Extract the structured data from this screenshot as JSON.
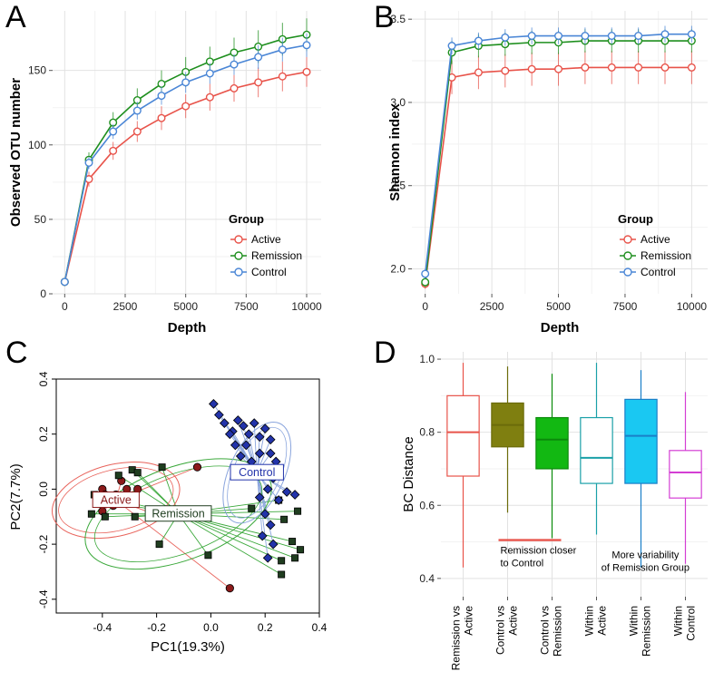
{
  "chart_data": [
    {
      "panel": "A",
      "type": "line",
      "xlabel": "Depth",
      "ylabel": "Observed OTU number",
      "xlim": [
        -500,
        10600
      ],
      "ylim": [
        0,
        190
      ],
      "x_ticks": [
        0,
        2500,
        5000,
        7500,
        10000
      ],
      "y_ticks": [
        0,
        50,
        100,
        150
      ],
      "grid": true,
      "legend": {
        "title": "Group",
        "position": "bottom-right"
      },
      "x": [
        0,
        1000,
        2000,
        3000,
        4000,
        5000,
        6000,
        7000,
        8000,
        9000,
        10000
      ],
      "series": [
        {
          "name": "Active",
          "color": "#e8534a",
          "values": [
            8,
            77,
            96,
            109,
            118,
            126,
            132,
            138,
            142,
            146,
            149
          ],
          "errors": [
            0,
            5,
            6,
            7,
            8,
            8,
            9,
            9,
            10,
            10,
            10
          ]
        },
        {
          "name": "Remission",
          "color": "#1e8f1e",
          "values": [
            8,
            90,
            115,
            130,
            141,
            149,
            156,
            162,
            166,
            171,
            174
          ],
          "errors": [
            0,
            5,
            7,
            8,
            9,
            10,
            10,
            10,
            11,
            11,
            11
          ]
        },
        {
          "name": "Control",
          "color": "#4a86d6",
          "values": [
            8,
            88,
            109,
            123,
            133,
            142,
            148,
            154,
            159,
            164,
            167
          ],
          "errors": [
            0,
            4,
            5,
            6,
            6,
            7,
            7,
            7,
            8,
            8,
            8
          ]
        }
      ]
    },
    {
      "panel": "B",
      "type": "line",
      "xlabel": "Depth",
      "ylabel": "Shannon index",
      "xlim": [
        -500,
        10600
      ],
      "ylim": [
        1.85,
        3.55
      ],
      "x_ticks": [
        0,
        2500,
        5000,
        7500,
        10000
      ],
      "y_ticks": [
        2.0,
        2.5,
        3.0,
        3.5
      ],
      "grid": true,
      "legend": {
        "title": "Group",
        "position": "bottom-right"
      },
      "x": [
        0,
        1000,
        2000,
        3000,
        4000,
        5000,
        6000,
        7000,
        8000,
        9000,
        10000
      ],
      "series": [
        {
          "name": "Active",
          "color": "#e8534a",
          "values": [
            1.91,
            3.15,
            3.18,
            3.19,
            3.2,
            3.2,
            3.21,
            3.21,
            3.21,
            3.21,
            3.21
          ],
          "errors": [
            0.03,
            0.1,
            0.1,
            0.1,
            0.1,
            0.1,
            0.1,
            0.1,
            0.1,
            0.1,
            0.1
          ]
        },
        {
          "name": "Remission",
          "color": "#1e8f1e",
          "values": [
            1.92,
            3.3,
            3.34,
            3.35,
            3.36,
            3.36,
            3.37,
            3.37,
            3.37,
            3.37,
            3.37
          ],
          "errors": [
            0.03,
            0.07,
            0.07,
            0.07,
            0.07,
            0.07,
            0.07,
            0.07,
            0.07,
            0.07,
            0.07
          ]
        },
        {
          "name": "Control",
          "color": "#4a86d6",
          "values": [
            1.97,
            3.34,
            3.37,
            3.39,
            3.4,
            3.4,
            3.4,
            3.4,
            3.4,
            3.41,
            3.41
          ],
          "errors": [
            0.03,
            0.05,
            0.05,
            0.05,
            0.05,
            0.05,
            0.05,
            0.05,
            0.05,
            0.05,
            0.05
          ]
        }
      ]
    },
    {
      "panel": "C",
      "type": "scatter",
      "xlabel": "PC1(19.3%)",
      "ylabel": "PC2(7.7%)",
      "xlim": [
        -0.57,
        0.4
      ],
      "ylim": [
        -0.45,
        0.4
      ],
      "x_ticks": [
        -0.4,
        -0.2,
        0.0,
        0.2,
        0.4
      ],
      "y_ticks": [
        -0.4,
        -0.2,
        0.0,
        0.2,
        0.4
      ],
      "grid": false,
      "groups": [
        {
          "name": "Active",
          "label": "Active",
          "color": "#8b1a1a",
          "line_color": "#e8625a",
          "centroid": [
            -0.35,
            -0.04
          ],
          "ellipse": [
            0.24,
            0.13,
            -14
          ],
          "points": [
            [
              -0.42,
              -0.05
            ],
            [
              -0.4,
              0.0
            ],
            [
              -0.38,
              -0.03
            ],
            [
              -0.35,
              -0.02
            ],
            [
              -0.36,
              -0.06
            ],
            [
              -0.33,
              0.03
            ],
            [
              -0.31,
              0.0
            ],
            [
              -0.29,
              -0.05
            ],
            [
              -0.27,
              0.0
            ],
            [
              -0.4,
              -0.08
            ],
            [
              -0.21,
              -0.09
            ],
            [
              -0.05,
              0.08
            ],
            [
              0.07,
              -0.36
            ],
            [
              -0.39,
              -0.02
            ]
          ]
        },
        {
          "name": "Remission",
          "label": "Remission",
          "color": "#1f3d1f",
          "line_color": "#3aa83a",
          "centroid": [
            -0.12,
            -0.09
          ],
          "ellipse": [
            0.36,
            0.17,
            -20
          ],
          "points": [
            [
              -0.43,
              -0.02
            ],
            [
              -0.41,
              -0.04
            ],
            [
              -0.44,
              -0.09
            ],
            [
              -0.39,
              -0.1
            ],
            [
              -0.34,
              0.05
            ],
            [
              -0.29,
              0.07
            ],
            [
              -0.27,
              0.06
            ],
            [
              -0.18,
              0.08
            ],
            [
              -0.28,
              -0.1
            ],
            [
              -0.19,
              -0.2
            ],
            [
              -0.01,
              -0.24
            ],
            [
              0.15,
              -0.07
            ],
            [
              0.25,
              -0.04
            ],
            [
              0.27,
              -0.11
            ],
            [
              0.3,
              -0.19
            ],
            [
              0.33,
              -0.22
            ],
            [
              0.26,
              -0.26
            ],
            [
              0.26,
              -0.31
            ],
            [
              0.31,
              -0.25
            ],
            [
              0.32,
              -0.08
            ]
          ]
        },
        {
          "name": "Control",
          "label": "Control",
          "color": "#2233aa",
          "line_color": "#8aa5dd",
          "centroid": [
            0.17,
            0.06
          ],
          "ellipse": [
            0.2,
            0.1,
            -65
          ],
          "points": [
            [
              0.01,
              0.31
            ],
            [
              0.03,
              0.27
            ],
            [
              0.05,
              0.24
            ],
            [
              0.08,
              0.21
            ],
            [
              0.1,
              0.25
            ],
            [
              0.12,
              0.23
            ],
            [
              0.14,
              0.2
            ],
            [
              0.16,
              0.24
            ],
            [
              0.18,
              0.19
            ],
            [
              0.2,
              0.22
            ],
            [
              0.22,
              0.18
            ],
            [
              0.13,
              0.16
            ],
            [
              0.11,
              0.12
            ],
            [
              0.15,
              0.1
            ],
            [
              0.18,
              0.13
            ],
            [
              0.22,
              0.13
            ],
            [
              0.24,
              0.1
            ],
            [
              0.2,
              0.07
            ],
            [
              0.23,
              0.04
            ],
            [
              0.21,
              0.0
            ],
            [
              0.25,
              -0.04
            ],
            [
              0.28,
              -0.01
            ],
            [
              0.31,
              -0.02
            ],
            [
              0.18,
              -0.03
            ],
            [
              0.2,
              -0.09
            ],
            [
              0.22,
              -0.13
            ],
            [
              0.19,
              -0.17
            ],
            [
              0.23,
              -0.2
            ],
            [
              0.21,
              -0.25
            ],
            [
              0.09,
              0.16
            ],
            [
              0.07,
              0.2
            ],
            [
              0.25,
              0.06
            ]
          ]
        }
      ]
    },
    {
      "panel": "D",
      "type": "box",
      "ylabel": "BC Distance",
      "ylim": [
        0.35,
        1.02
      ],
      "y_ticks": [
        0.4,
        0.6,
        0.8,
        1.0
      ],
      "grid": true,
      "categories": [
        "Remission vs Active",
        "Control vs Active",
        "Control vs Remission",
        "Within Active",
        "Within Remission",
        "Within Control"
      ],
      "boxes": [
        {
          "label_lines": [
            "Remission vs",
            "Active"
          ],
          "color": "#e8534a",
          "fill": "#ffffff",
          "min": 0.43,
          "q1": 0.68,
          "median": 0.8,
          "q3": 0.9,
          "max": 0.99
        },
        {
          "label_lines": [
            "Control vs",
            "Active"
          ],
          "color": "#6b6b0a",
          "fill": "#7f7f10",
          "min": 0.58,
          "q1": 0.76,
          "median": 0.82,
          "q3": 0.88,
          "max": 0.98
        },
        {
          "label_lines": [
            "Control vs",
            "Remission"
          ],
          "color": "#0a8a0a",
          "fill": "#12b812",
          "min": 0.51,
          "q1": 0.7,
          "median": 0.78,
          "q3": 0.84,
          "max": 0.96
        },
        {
          "label_lines": [
            "Within",
            "Active"
          ],
          "color": "#1aa0a8",
          "fill": "#ffffff",
          "min": 0.52,
          "q1": 0.66,
          "median": 0.73,
          "q3": 0.84,
          "max": 0.99
        },
        {
          "label_lines": [
            "Within",
            "Remission"
          ],
          "color": "#1a7fc8",
          "fill": "#1ac8f2",
          "min": 0.43,
          "q1": 0.66,
          "median": 0.79,
          "q3": 0.89,
          "max": 0.97
        },
        {
          "label_lines": [
            "Within",
            "Control"
          ],
          "color": "#d43ed4",
          "fill": "#ffffff",
          "min": 0.44,
          "q1": 0.62,
          "median": 0.69,
          "q3": 0.75,
          "max": 0.91
        }
      ],
      "annotations": [
        {
          "lines": [
            "Remission closer",
            "to Control"
          ],
          "underline_color": "#e8534a",
          "x_box_range": [
            2,
            3
          ],
          "y": 0.49
        },
        {
          "lines": [
            "More variability",
            "of Remission Group"
          ],
          "x_box": 5.1,
          "y": 0.44
        }
      ]
    }
  ],
  "panel_labels": [
    "A",
    "B",
    "C",
    "D"
  ]
}
